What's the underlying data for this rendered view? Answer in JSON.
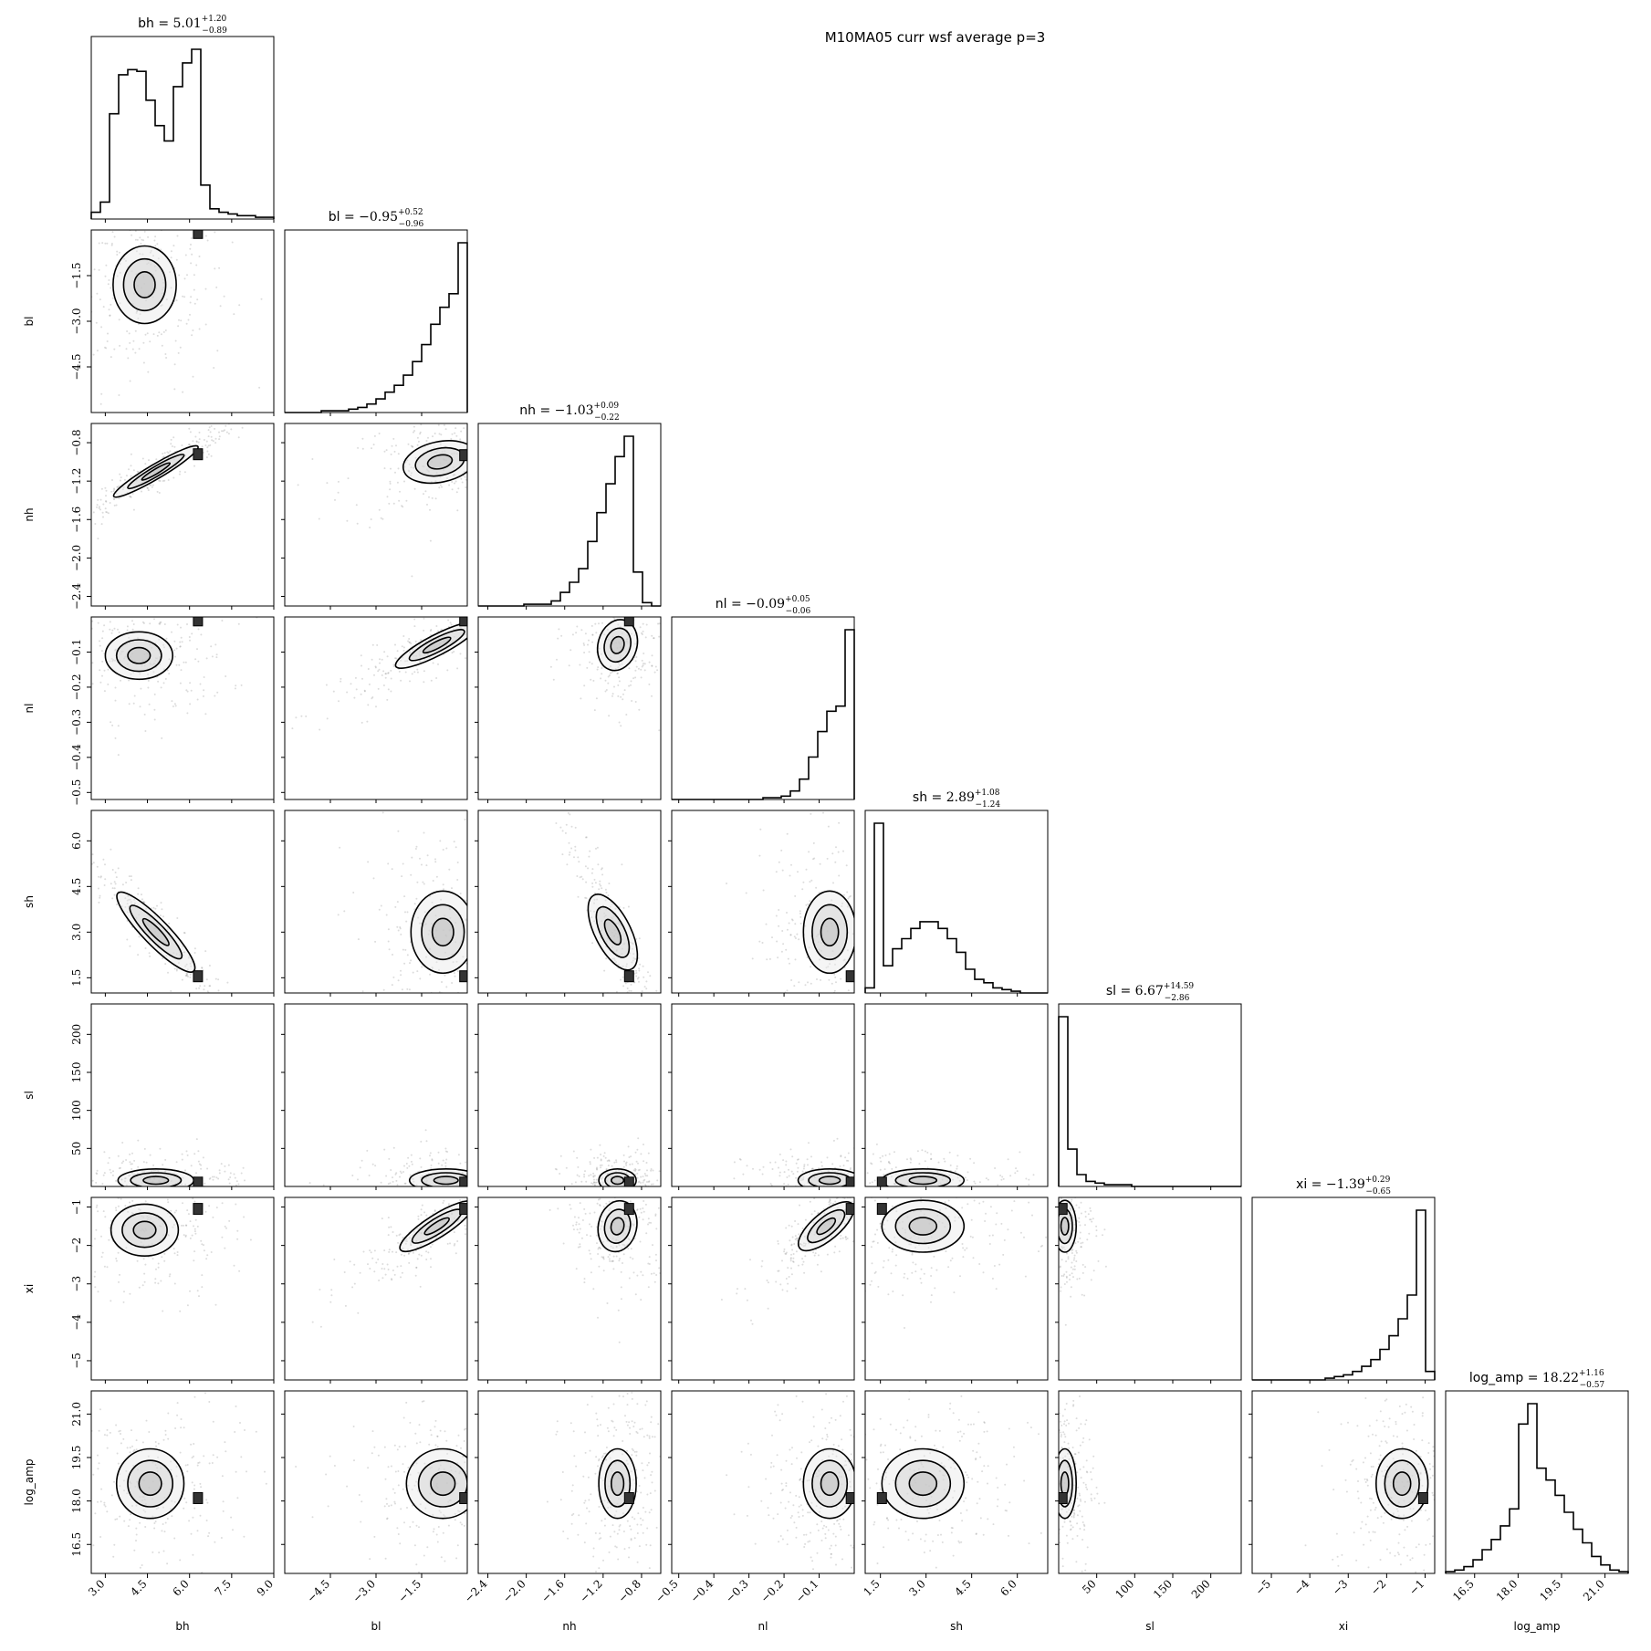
{
  "figure": {
    "title": "M10MA05 curr wsf average p=3"
  },
  "colors": {
    "axes": "#000000",
    "scatter": "#808080",
    "density": "#333333"
  },
  "chart_data": {
    "type": "corner",
    "title": "M10MA05 curr wsf average p=3",
    "parameters": [
      {
        "name": "bh",
        "median": "5.01",
        "plus": "+1.20",
        "minus": "−0.89",
        "range": [
          2.5,
          9.0
        ],
        "ticks": [
          3.0,
          4.5,
          6.0,
          7.5,
          9.0
        ],
        "tick_labels": [
          "3.0",
          "4.5",
          "6.0",
          "7.5",
          "9.0"
        ],
        "hist": [
          0.04,
          0.1,
          0.62,
          0.85,
          0.88,
          0.87,
          0.7,
          0.55,
          0.46,
          0.78,
          0.92,
          1.0,
          0.2,
          0.06,
          0.04,
          0.03,
          0.02,
          0.02,
          0.01,
          0.01
        ]
      },
      {
        "name": "bl",
        "median": "−0.95",
        "plus": "+0.52",
        "minus": "−0.96",
        "range": [
          -6.0,
          0.0
        ],
        "ticks": [
          -4.5,
          -3.0,
          -1.5
        ],
        "tick_labels": [
          "−4.5",
          "−3.0",
          "−1.5"
        ],
        "hist": [
          0.0,
          0.0,
          0.0,
          0.0,
          0.01,
          0.01,
          0.01,
          0.02,
          0.03,
          0.05,
          0.08,
          0.12,
          0.16,
          0.22,
          0.3,
          0.4,
          0.52,
          0.62,
          0.7,
          1.0
        ]
      },
      {
        "name": "nh",
        "median": "−1.03",
        "plus": "+0.09",
        "minus": "−0.22",
        "range": [
          -2.5,
          -0.6
        ],
        "ticks": [
          -2.4,
          -2.0,
          -1.6,
          -1.2,
          -0.8
        ],
        "tick_labels": [
          "−2.4",
          "−2.0",
          "−1.6",
          "−1.2",
          "−0.8"
        ],
        "hist": [
          0.0,
          0.0,
          0.0,
          0.0,
          0.0,
          0.01,
          0.01,
          0.01,
          0.03,
          0.08,
          0.14,
          0.22,
          0.38,
          0.55,
          0.72,
          0.88,
          1.0,
          0.2,
          0.02,
          0.0
        ]
      },
      {
        "name": "nl",
        "median": "−0.09",
        "plus": "+0.05",
        "minus": "−0.06",
        "range": [
          -0.52,
          0.0
        ],
        "ticks": [
          -0.5,
          -0.4,
          -0.3,
          -0.2,
          -0.1
        ],
        "tick_labels": [
          "−0.5",
          "−0.4",
          "−0.3",
          "−0.2",
          "−0.1"
        ],
        "hist": [
          0.0,
          0.0,
          0.0,
          0.0,
          0.0,
          0.0,
          0.0,
          0.0,
          0.0,
          0.0,
          0.01,
          0.01,
          0.02,
          0.05,
          0.12,
          0.25,
          0.4,
          0.52,
          0.55,
          1.0
        ]
      },
      {
        "name": "sh",
        "median": "2.89",
        "plus": "+1.08",
        "minus": "−1.24",
        "range": [
          1.0,
          7.0
        ],
        "ticks": [
          1.5,
          3.0,
          4.5,
          6.0
        ],
        "tick_labels": [
          "1.5",
          "3.0",
          "4.5",
          "6.0"
        ],
        "hist": [
          0.03,
          1.0,
          0.16,
          0.26,
          0.32,
          0.38,
          0.42,
          0.42,
          0.38,
          0.32,
          0.24,
          0.14,
          0.08,
          0.06,
          0.03,
          0.02,
          0.01,
          0.0,
          0.0,
          0.0
        ]
      },
      {
        "name": "sl",
        "median": "6.67",
        "plus": "+14.59",
        "minus": "−2.86",
        "range": [
          0.0,
          240.0
        ],
        "ticks": [
          50,
          100,
          150,
          200
        ],
        "tick_labels": [
          "50",
          "100",
          "150",
          "200"
        ],
        "hist": [
          1.0,
          0.22,
          0.07,
          0.03,
          0.02,
          0.01,
          0.01,
          0.01,
          0.0,
          0.0,
          0.0,
          0.0,
          0.0,
          0.0,
          0.0,
          0.0,
          0.0,
          0.0,
          0.0,
          0.0
        ]
      },
      {
        "name": "xi",
        "median": "−1.39",
        "plus": "+0.29",
        "minus": "−0.65",
        "range": [
          -5.5,
          -0.75
        ],
        "ticks": [
          -5,
          -4,
          -3,
          -2,
          -1
        ],
        "tick_labels": [
          "−5",
          "−4",
          "−3",
          "−2",
          "−1"
        ],
        "hist": [
          0.0,
          0.0,
          0.0,
          0.0,
          0.0,
          0.0,
          0.0,
          0.0,
          0.01,
          0.02,
          0.03,
          0.05,
          0.08,
          0.12,
          0.18,
          0.26,
          0.36,
          0.5,
          1.0,
          0.05
        ]
      },
      {
        "name": "log_amp",
        "median": "18.22",
        "plus": "+1.16",
        "minus": "−0.57",
        "range": [
          15.5,
          21.8
        ],
        "ticks": [
          16.5,
          18.0,
          19.5,
          21.0
        ],
        "tick_labels": [
          "16.5",
          "18.0",
          "19.5",
          "21.0"
        ],
        "hist": [
          0.01,
          0.02,
          0.04,
          0.08,
          0.14,
          0.2,
          0.28,
          0.38,
          0.88,
          1.0,
          0.62,
          0.55,
          0.46,
          0.36,
          0.26,
          0.18,
          0.1,
          0.05,
          0.02,
          0.01
        ]
      }
    ],
    "pairs": [
      {
        "x": "bh",
        "y": "bl",
        "centroid": [
          4.4,
          -1.8
        ],
        "sigma": [
          0.75,
          0.85
        ],
        "corr": 0.0,
        "peak": [
          6.3,
          -0.1
        ]
      },
      {
        "x": "bh",
        "y": "nh",
        "centroid": [
          4.8,
          -1.1
        ],
        "sigma": [
          1.0,
          0.18
        ],
        "corr": 0.96,
        "peak": [
          6.3,
          -0.92
        ]
      },
      {
        "x": "bl",
        "y": "nh",
        "centroid": [
          -0.9,
          -1.0
        ],
        "sigma": [
          0.8,
          0.15
        ],
        "corr": 0.35,
        "peak": [
          -0.1,
          -0.93
        ]
      },
      {
        "x": "bh",
        "y": "nl",
        "centroid": [
          4.2,
          -0.11
        ],
        "sigma": [
          0.8,
          0.045
        ],
        "corr": 0.0,
        "peak": [
          6.3,
          -0.01
        ]
      },
      {
        "x": "bl",
        "y": "nl",
        "centroid": [
          -1.0,
          -0.08
        ],
        "sigma": [
          0.9,
          0.045
        ],
        "corr": 0.9,
        "peak": [
          -0.1,
          -0.01
        ]
      },
      {
        "x": "nh",
        "y": "nl",
        "centroid": [
          -1.05,
          -0.08
        ],
        "sigma": [
          0.13,
          0.05
        ],
        "corr": -0.2,
        "peak": [
          -0.93,
          -0.01
        ]
      },
      {
        "x": "bh",
        "y": "sh",
        "centroid": [
          4.8,
          3.0
        ],
        "sigma": [
          0.9,
          0.9
        ],
        "corr": -0.95,
        "peak": [
          6.3,
          1.55
        ]
      },
      {
        "x": "bl",
        "y": "sh",
        "centroid": [
          -0.8,
          3.0
        ],
        "sigma": [
          0.7,
          0.9
        ],
        "corr": 0.0,
        "peak": [
          -0.1,
          1.55
        ]
      },
      {
        "x": "nh",
        "y": "sh",
        "centroid": [
          -1.1,
          3.0
        ],
        "sigma": [
          0.13,
          0.9
        ],
        "corr": -0.9,
        "peak": [
          -0.93,
          1.55
        ]
      },
      {
        "x": "nl",
        "y": "sh",
        "centroid": [
          -0.07,
          3.0
        ],
        "sigma": [
          0.05,
          0.9
        ],
        "corr": 0.0,
        "peak": [
          -0.01,
          1.55
        ]
      },
      {
        "x": "bh",
        "y": "sl",
        "centroid": [
          4.8,
          8.0
        ],
        "sigma": [
          0.9,
          10.0
        ],
        "corr": 0.0,
        "peak": [
          6.3,
          5.0
        ]
      },
      {
        "x": "bl",
        "y": "sl",
        "centroid": [
          -0.7,
          8.0
        ],
        "sigma": [
          0.8,
          10.0
        ],
        "corr": 0.0,
        "peak": [
          -0.1,
          5.0
        ]
      },
      {
        "x": "nh",
        "y": "sl",
        "centroid": [
          -1.05,
          8.0
        ],
        "sigma": [
          0.13,
          10.0
        ],
        "corr": 0.0,
        "peak": [
          -0.93,
          5.0
        ]
      },
      {
        "x": "nl",
        "y": "sl",
        "centroid": [
          -0.07,
          8.0
        ],
        "sigma": [
          0.06,
          10.0
        ],
        "corr": 0.0,
        "peak": [
          -0.01,
          5.0
        ]
      },
      {
        "x": "sh",
        "y": "sl",
        "centroid": [
          2.9,
          8.0
        ],
        "sigma": [
          0.9,
          10.0
        ],
        "corr": 0.0,
        "peak": [
          1.55,
          5.0
        ]
      },
      {
        "x": "bh",
        "y": "xi",
        "centroid": [
          4.4,
          -1.6
        ],
        "sigma": [
          0.8,
          0.45
        ],
        "corr": 0.0,
        "peak": [
          6.3,
          -1.05
        ]
      },
      {
        "x": "bl",
        "y": "xi",
        "centroid": [
          -1.0,
          -1.5
        ],
        "sigma": [
          0.8,
          0.45
        ],
        "corr": 0.9,
        "peak": [
          -0.1,
          -1.05
        ]
      },
      {
        "x": "nh",
        "y": "xi",
        "centroid": [
          -1.05,
          -1.5
        ],
        "sigma": [
          0.13,
          0.45
        ],
        "corr": -0.15,
        "peak": [
          -0.93,
          -1.05
        ]
      },
      {
        "x": "nl",
        "y": "xi",
        "centroid": [
          -0.08,
          -1.5
        ],
        "sigma": [
          0.05,
          0.45
        ],
        "corr": 0.85,
        "peak": [
          -0.01,
          -1.05
        ]
      },
      {
        "x": "sh",
        "y": "xi",
        "centroid": [
          2.9,
          -1.5
        ],
        "sigma": [
          0.9,
          0.45
        ],
        "corr": 0.0,
        "peak": [
          1.55,
          -1.05
        ]
      },
      {
        "x": "sl",
        "y": "xi",
        "centroid": [
          8.0,
          -1.5
        ],
        "sigma": [
          10.0,
          0.45
        ],
        "corr": 0.0,
        "peak": [
          5.0,
          -1.05
        ]
      },
      {
        "x": "bh",
        "y": "log_amp",
        "centroid": [
          4.6,
          18.6
        ],
        "sigma": [
          0.8,
          0.8
        ],
        "corr": 0.0,
        "peak": [
          6.3,
          18.1
        ]
      },
      {
        "x": "bl",
        "y": "log_amp",
        "centroid": [
          -0.8,
          18.6
        ],
        "sigma": [
          0.8,
          0.8
        ],
        "corr": 0.0,
        "peak": [
          -0.1,
          18.1
        ]
      },
      {
        "x": "nh",
        "y": "log_amp",
        "centroid": [
          -1.05,
          18.6
        ],
        "sigma": [
          0.13,
          0.8
        ],
        "corr": 0.0,
        "peak": [
          -0.93,
          18.1
        ]
      },
      {
        "x": "nl",
        "y": "log_amp",
        "centroid": [
          -0.07,
          18.6
        ],
        "sigma": [
          0.05,
          0.8
        ],
        "corr": 0.0,
        "peak": [
          -0.01,
          18.1
        ]
      },
      {
        "x": "sh",
        "y": "log_amp",
        "centroid": [
          2.9,
          18.6
        ],
        "sigma": [
          0.9,
          0.8
        ],
        "corr": 0.0,
        "peak": [
          1.55,
          18.1
        ]
      },
      {
        "x": "sl",
        "y": "log_amp",
        "centroid": [
          8.0,
          18.6
        ],
        "sigma": [
          10.0,
          0.8
        ],
        "corr": 0.0,
        "peak": [
          5.0,
          18.1
        ]
      },
      {
        "x": "xi",
        "y": "log_amp",
        "centroid": [
          -1.6,
          18.6
        ],
        "sigma": [
          0.45,
          0.8
        ],
        "corr": 0.0,
        "peak": [
          -1.05,
          18.1
        ]
      }
    ],
    "contour_levels_sigma": [
      0.5,
      1.0,
      1.5
    ],
    "grid": false,
    "legend": "none"
  }
}
